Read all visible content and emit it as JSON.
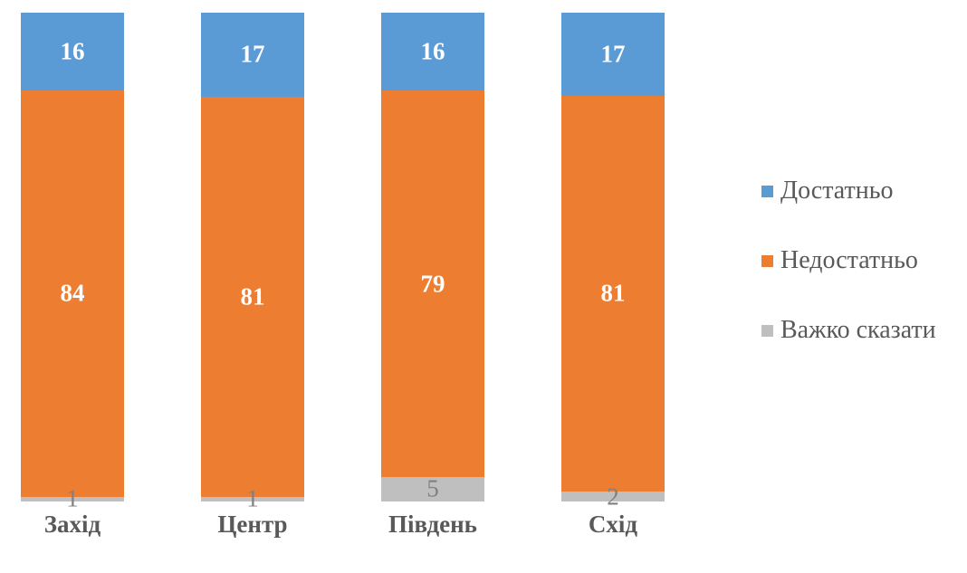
{
  "chart_data": {
    "type": "bar",
    "variant": "stacked-100-percent-column",
    "title": "",
    "categories": [
      "Захід",
      "Центр",
      "Південь",
      "Схід"
    ],
    "series": [
      {
        "name": "Достатньо",
        "color": "#5b9bd5",
        "label_color": "#ffffff",
        "values": [
          16,
          17,
          16,
          17
        ]
      },
      {
        "name": "Недостатньо",
        "color": "#ed7d31",
        "label_color": "#ffffff",
        "values": [
          84,
          81,
          79,
          81
        ]
      },
      {
        "name": "Важко сказати",
        "color": "#bfbfbf",
        "label_color": "#808080",
        "values": [
          1,
          1,
          5,
          2
        ]
      }
    ],
    "data_labels": true,
    "legend_position": "right",
    "xlabel": "",
    "ylabel": "",
    "y_axis": "hidden",
    "gridlines": false
  },
  "colors": {
    "background": "#ffffff",
    "category_label_text": "#595959",
    "legend_text": "#595959"
  }
}
